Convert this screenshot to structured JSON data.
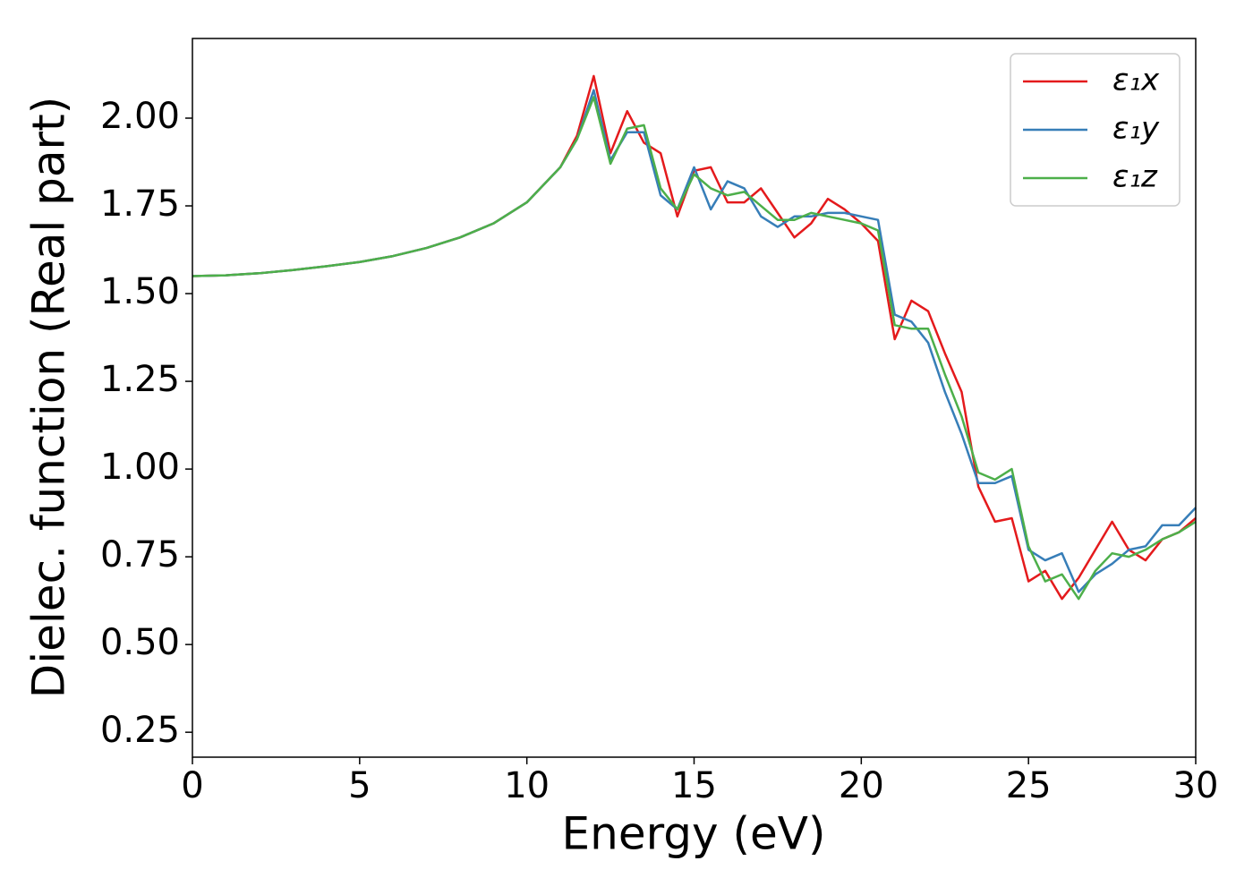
{
  "chart_data": {
    "type": "line",
    "x_label": "Energy (eV)",
    "y_label": "Dielec. function (Real part)",
    "x": [
      0,
      1,
      2,
      3,
      4,
      5,
      6,
      7,
      8,
      9,
      10,
      11,
      11.5,
      12,
      12.5,
      13,
      13.5,
      14,
      14.5,
      15,
      15.5,
      16,
      16.5,
      17,
      17.5,
      18,
      18.5,
      19,
      19.5,
      20,
      20.5,
      21,
      21.5,
      22,
      22.5,
      23,
      23.5,
      24,
      24.5,
      25,
      25.5,
      26,
      26.5,
      27,
      27.5,
      28,
      28.5,
      29,
      29.5,
      30
    ],
    "series": [
      {
        "name": "ε₁x",
        "color": "#e41a1c",
        "values": [
          1.55,
          1.552,
          1.558,
          1.567,
          1.578,
          1.59,
          1.607,
          1.63,
          1.66,
          1.7,
          1.76,
          1.86,
          1.95,
          2.12,
          1.9,
          2.02,
          1.93,
          1.9,
          1.72,
          1.85,
          1.86,
          1.76,
          1.76,
          1.8,
          1.73,
          1.66,
          1.7,
          1.77,
          1.74,
          1.7,
          1.65,
          1.37,
          1.48,
          1.45,
          1.33,
          1.22,
          0.95,
          0.85,
          0.86,
          0.68,
          0.71,
          0.63,
          0.69,
          0.77,
          0.85,
          0.77,
          0.74,
          0.8,
          0.82,
          0.86
        ]
      },
      {
        "name": "ε₁y",
        "color": "#377eb8",
        "values": [
          1.55,
          1.552,
          1.558,
          1.567,
          1.578,
          1.59,
          1.607,
          1.63,
          1.66,
          1.7,
          1.76,
          1.86,
          1.94,
          2.08,
          1.88,
          1.96,
          1.96,
          1.78,
          1.74,
          1.86,
          1.74,
          1.82,
          1.8,
          1.72,
          1.69,
          1.72,
          1.72,
          1.73,
          1.73,
          1.72,
          1.71,
          1.44,
          1.42,
          1.36,
          1.22,
          1.1,
          0.96,
          0.96,
          0.98,
          0.77,
          0.74,
          0.76,
          0.65,
          0.7,
          0.73,
          0.77,
          0.78,
          0.84,
          0.84,
          0.89
        ]
      },
      {
        "name": "ε₁z",
        "color": "#4daf4a",
        "values": [
          1.55,
          1.552,
          1.558,
          1.567,
          1.578,
          1.59,
          1.607,
          1.63,
          1.66,
          1.7,
          1.76,
          1.86,
          1.94,
          2.06,
          1.87,
          1.97,
          1.98,
          1.8,
          1.74,
          1.84,
          1.8,
          1.78,
          1.79,
          1.75,
          1.71,
          1.71,
          1.73,
          1.72,
          1.71,
          1.7,
          1.68,
          1.41,
          1.4,
          1.4,
          1.27,
          1.15,
          0.99,
          0.97,
          1.0,
          0.78,
          0.68,
          0.7,
          0.63,
          0.71,
          0.76,
          0.75,
          0.77,
          0.8,
          0.82,
          0.85
        ]
      }
    ],
    "xlim": [
      0,
      30
    ],
    "ylim": [
      0.179,
      2.227
    ],
    "xticks": [
      0,
      5,
      10,
      15,
      20,
      25,
      30
    ],
    "yticks": [
      0.25,
      {
        "value": 0.5,
        "label": "0.50"
      },
      0.75,
      {
        "value": 1.0,
        "label": "1.00"
      },
      1.25,
      {
        "value": 1.5,
        "label": "1.50"
      },
      1.75,
      {
        "value": 2.0,
        "label": "2.00"
      }
    ],
    "legend": "upper right"
  }
}
